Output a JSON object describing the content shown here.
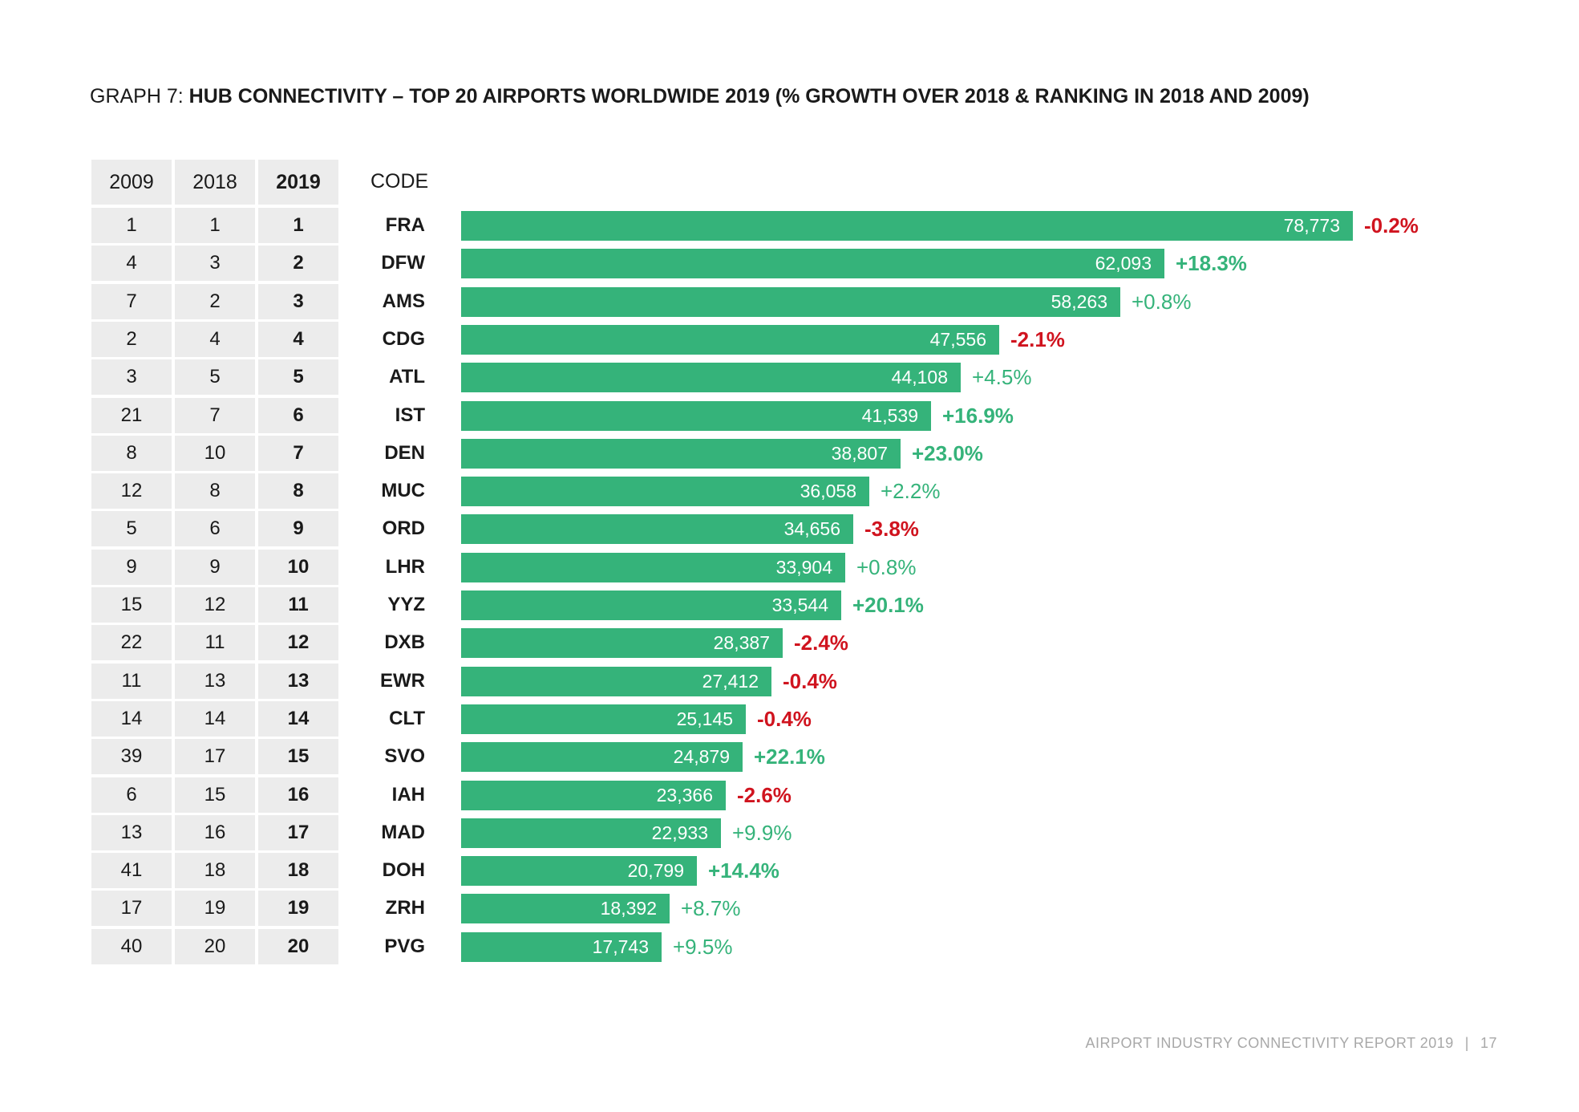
{
  "title": {
    "prefix": "GRAPH 7: ",
    "main": "HUB CONNECTIVITY – TOP 20 AIRPORTS WORLDWIDE 2019 (% GROWTH OVER 2018 & RANKING IN 2018 AND 2009)"
  },
  "table": {
    "headers": [
      "2009",
      "2018",
      "2019",
      "CODE"
    ]
  },
  "colors": {
    "bar": "#35b37a",
    "positive": "#35b37a",
    "negative": "#d0141f",
    "table_bg": "#ececec"
  },
  "chart_data": {
    "type": "bar",
    "orientation": "horizontal",
    "title": "HUB CONNECTIVITY – TOP 20 AIRPORTS WORLDWIDE 2019 (% GROWTH OVER 2018 & RANKING IN 2018 AND 2009)",
    "xlim": [
      0,
      78773
    ],
    "rows": [
      {
        "rank2009": "1",
        "rank2018": "1",
        "rank2019": "1",
        "code": "FRA",
        "value": 78773,
        "value_label": "78,773",
        "growth": "-0.2%",
        "strong": true
      },
      {
        "rank2009": "4",
        "rank2018": "3",
        "rank2019": "2",
        "code": "DFW",
        "value": 62093,
        "value_label": "62,093",
        "growth": "+18.3%",
        "strong": true
      },
      {
        "rank2009": "7",
        "rank2018": "2",
        "rank2019": "3",
        "code": "AMS",
        "value": 58263,
        "value_label": "58,263",
        "growth": "+0.8%",
        "strong": false
      },
      {
        "rank2009": "2",
        "rank2018": "4",
        "rank2019": "4",
        "code": "CDG",
        "value": 47556,
        "value_label": "47,556",
        "growth": "-2.1%",
        "strong": true
      },
      {
        "rank2009": "3",
        "rank2018": "5",
        "rank2019": "5",
        "code": "ATL",
        "value": 44108,
        "value_label": "44,108",
        "growth": "+4.5%",
        "strong": false
      },
      {
        "rank2009": "21",
        "rank2018": "7",
        "rank2019": "6",
        "code": "IST",
        "value": 41539,
        "value_label": "41,539",
        "growth": "+16.9%",
        "strong": true
      },
      {
        "rank2009": "8",
        "rank2018": "10",
        "rank2019": "7",
        "code": "DEN",
        "value": 38807,
        "value_label": "38,807",
        "growth": "+23.0%",
        "strong": true
      },
      {
        "rank2009": "12",
        "rank2018": "8",
        "rank2019": "8",
        "code": "MUC",
        "value": 36058,
        "value_label": "36,058",
        "growth": "+2.2%",
        "strong": false
      },
      {
        "rank2009": "5",
        "rank2018": "6",
        "rank2019": "9",
        "code": "ORD",
        "value": 34656,
        "value_label": "34,656",
        "growth": "-3.8%",
        "strong": true
      },
      {
        "rank2009": "9",
        "rank2018": "9",
        "rank2019": "10",
        "code": "LHR",
        "value": 33904,
        "value_label": "33,904",
        "growth": "+0.8%",
        "strong": false
      },
      {
        "rank2009": "15",
        "rank2018": "12",
        "rank2019": "11",
        "code": "YYZ",
        "value": 33544,
        "value_label": "33,544",
        "growth": "+20.1%",
        "strong": true
      },
      {
        "rank2009": "22",
        "rank2018": "11",
        "rank2019": "12",
        "code": "DXB",
        "value": 28387,
        "value_label": "28,387",
        "growth": "-2.4%",
        "strong": true
      },
      {
        "rank2009": "11",
        "rank2018": "13",
        "rank2019": "13",
        "code": "EWR",
        "value": 27412,
        "value_label": "27,412",
        "growth": "-0.4%",
        "strong": true
      },
      {
        "rank2009": "14",
        "rank2018": "14",
        "rank2019": "14",
        "code": "CLT",
        "value": 25145,
        "value_label": "25,145",
        "growth": "-0.4%",
        "strong": true
      },
      {
        "rank2009": "39",
        "rank2018": "17",
        "rank2019": "15",
        "code": "SVO",
        "value": 24879,
        "value_label": "24,879",
        "growth": "+22.1%",
        "strong": true
      },
      {
        "rank2009": "6",
        "rank2018": "15",
        "rank2019": "16",
        "code": "IAH",
        "value": 23366,
        "value_label": "23,366",
        "growth": "-2.6%",
        "strong": true
      },
      {
        "rank2009": "13",
        "rank2018": "16",
        "rank2019": "17",
        "code": "MAD",
        "value": 22933,
        "value_label": "22,933",
        "growth": "+9.9%",
        "strong": false
      },
      {
        "rank2009": "41",
        "rank2018": "18",
        "rank2019": "18",
        "code": "DOH",
        "value": 20799,
        "value_label": "20,799",
        "growth": "+14.4%",
        "strong": true
      },
      {
        "rank2009": "17",
        "rank2018": "19",
        "rank2019": "19",
        "code": "ZRH",
        "value": 18392,
        "value_label": "18,392",
        "growth": "+8.7%",
        "strong": false
      },
      {
        "rank2009": "40",
        "rank2018": "20",
        "rank2019": "20",
        "code": "PVG",
        "value": 17743,
        "value_label": "17,743",
        "growth": "+9.5%",
        "strong": false
      }
    ]
  },
  "footer": {
    "report": "AIRPORT INDUSTRY CONNECTIVITY REPORT 2019",
    "separator": "|",
    "page": "17"
  }
}
